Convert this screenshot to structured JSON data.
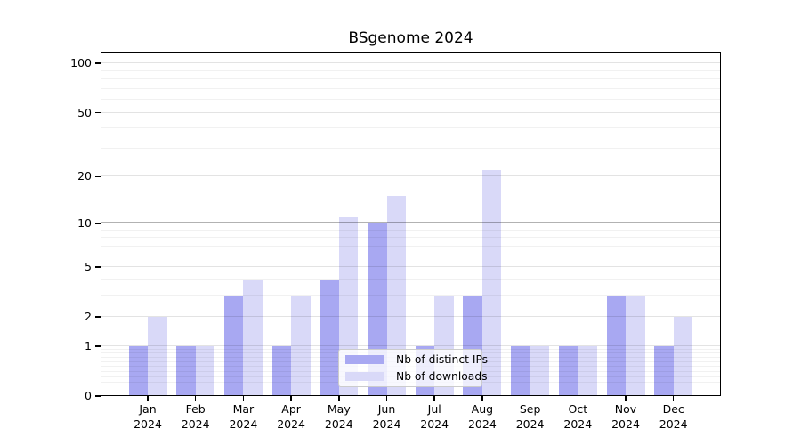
{
  "chart_data": {
    "type": "bar",
    "title": "BSgenome 2024",
    "categories": [
      "Jan",
      "Feb",
      "Mar",
      "Apr",
      "May",
      "Jun",
      "Jul",
      "Aug",
      "Sep",
      "Oct",
      "Nov",
      "Dec"
    ],
    "category_year": "2024",
    "series": [
      {
        "name": "Nb of distinct IPs",
        "color": "#a8a8f2",
        "values": [
          1,
          1,
          3,
          1,
          4,
          10,
          1,
          3,
          1,
          1,
          3,
          1
        ]
      },
      {
        "name": "Nb of downloads",
        "color": "#d9d9f8",
        "values": [
          2,
          1,
          4,
          3,
          11,
          15,
          3,
          22,
          1,
          1,
          3,
          2
        ]
      }
    ],
    "yscale": "log1p",
    "ylim": [
      0,
      118
    ],
    "yticks": [
      0,
      1,
      2,
      5,
      10,
      20,
      50,
      100
    ],
    "minor_gridlines": [
      0.2,
      0.3,
      0.4,
      0.5,
      0.6,
      0.7,
      0.8,
      0.9,
      3,
      4,
      6,
      7,
      8,
      9,
      30,
      40,
      60,
      70,
      80,
      90
    ],
    "emphasized_gridline": 10,
    "grid": true,
    "legend_position": "inside-bottom-center"
  },
  "colors": {
    "background": "#ffffff",
    "spine": "#000000",
    "text": "#000000",
    "legend_border": "#cccccc"
  }
}
